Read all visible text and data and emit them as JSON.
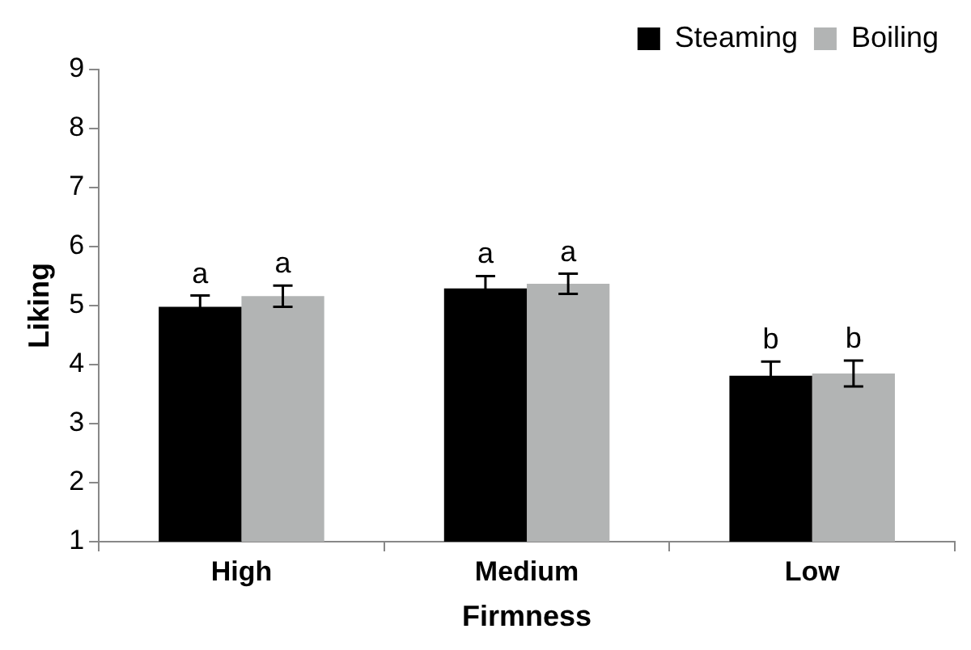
{
  "chart_data": {
    "type": "bar",
    "xlabel": "Firmness",
    "ylabel": "Liking",
    "categories": [
      "High",
      "Medium",
      "Low"
    ],
    "series": [
      {
        "name": "Steaming",
        "color": "#000000",
        "values": [
          4.98,
          5.29,
          3.81
        ],
        "errors": [
          0.19,
          0.21,
          0.24
        ],
        "value_labels": [
          "a",
          "a",
          "b"
        ]
      },
      {
        "name": "Boiling",
        "color": "#b2b4b4",
        "values": [
          5.16,
          5.37,
          3.85
        ],
        "errors": [
          0.18,
          0.17,
          0.22
        ],
        "value_labels": [
          "a",
          "a",
          "b"
        ]
      }
    ],
    "ylim": [
      1,
      9
    ],
    "yticks": [
      1,
      2,
      3,
      4,
      5,
      6,
      7,
      8,
      9
    ],
    "grid": false,
    "legend": "top right"
  }
}
